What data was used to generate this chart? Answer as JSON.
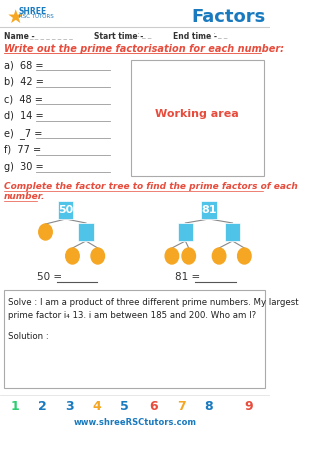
{
  "title": "Factors",
  "section1_heading": "Write out the prime factorisation for each number:",
  "items": [
    "a)  68 =",
    "b)  42 =",
    "c)  48 =",
    "d)  14 =",
    "e)  _7 =",
    "f)  77 =",
    "g)  30 ="
  ],
  "working_area_label": "Working area",
  "section2_line1": "Complete the factor tree to find the prime factors of each",
  "section2_line2": "number.",
  "tree1_root": "50",
  "tree2_root": "81",
  "eq1": "50 =",
  "eq2": "81 =",
  "solve_line1": "Solve : I am a product of three different prime numbers. My largest",
  "solve_line2": "prime factor i₄ 13. i am between 185 and 200. Who am I?",
  "solve_line3": "Solution :",
  "footer_numbers": [
    "1",
    "2",
    "3",
    "4",
    "5",
    "6",
    "7",
    "8",
    "9"
  ],
  "footer_number_colors": [
    "#2ecc71",
    "#1a7abf",
    "#1a7abf",
    "#f5a623",
    "#1a7abf",
    "#e74c3c",
    "#f5a623",
    "#1a7abf",
    "#e74c3c"
  ],
  "footer_url": "www.shreeRSCtutors.com",
  "bg_color": "#ffffff",
  "red_color": "#e74c3c",
  "blue_color": "#1a7abf",
  "orange_color": "#f5a623",
  "cyan_box_color": "#4fc3e8",
  "line_color": "#888888",
  "border_color": "#aaaaaa",
  "shree_color": "#1a7abf",
  "name_label": "Name -",
  "name_dashes": "_ _ _ _ _ _ _ _",
  "start_label": "Start time -",
  "start_dashes": "_ _ : _ _",
  "end_label": "End time -",
  "end_dashes": "_ _ : _ _"
}
